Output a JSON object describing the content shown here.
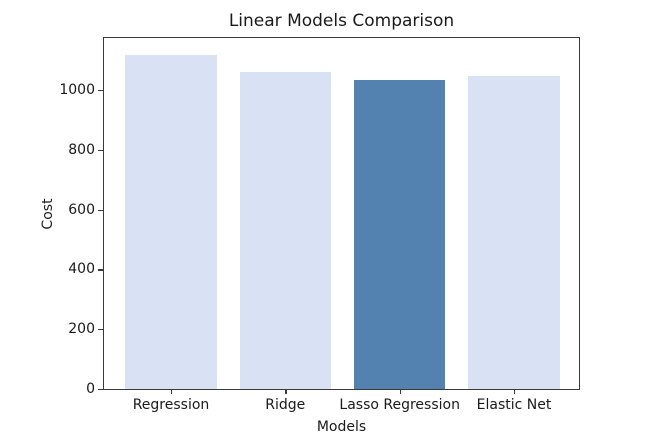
{
  "chart_data": {
    "type": "bar",
    "title": "Linear Models Comparison",
    "categories": [
      "Regression",
      "Ridge",
      "Lasso Regression",
      "Elastic Net"
    ],
    "values": [
      1118,
      1062,
      1035,
      1047
    ],
    "xlabel": "Models",
    "ylabel": "Cost",
    "ylim": [
      0,
      1174
    ],
    "yticks": [
      0,
      200,
      400,
      600,
      800,
      1000
    ],
    "bar_colors": [
      "#d9e2f5",
      "#d9e2f5",
      "#5482b0",
      "#d9e2f5"
    ],
    "highlighted_category": "Lasso Regression",
    "colors": {
      "light_bar": "#d9e2f5",
      "dark_bar": "#5482b0",
      "spine": "#3a3a3a",
      "text": "#1a1a1a",
      "background": "#ffffff"
    },
    "grid": false,
    "legend_position": "none"
  }
}
